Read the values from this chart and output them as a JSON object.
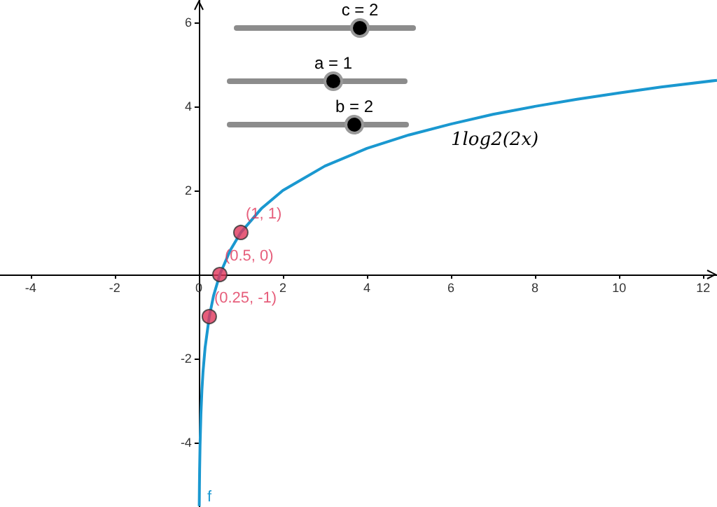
{
  "chart_data": {
    "type": "line",
    "xlim": [
      -4.73,
      12.33
    ],
    "ylim": [
      -5.53,
      6.53
    ],
    "xticks": [
      -4,
      -2,
      0,
      2,
      4,
      6,
      8,
      10,
      12
    ],
    "yticks": [
      -4,
      -2,
      2,
      4,
      6
    ],
    "marker": "none",
    "series": [
      {
        "color": "#1a98d0",
        "x": [
          0.011,
          0.015,
          0.02,
          0.03,
          0.05,
          0.075,
          0.1,
          0.15,
          0.25,
          0.35,
          0.5,
          0.75,
          1,
          1.5,
          2,
          3,
          4,
          5,
          6,
          7,
          8,
          9,
          10,
          11,
          12.33
        ],
        "values": [
          -5.51,
          -5.06,
          -4.64,
          -4.06,
          -3.32,
          -2.74,
          -2.32,
          -1.74,
          -1,
          -0.51,
          0,
          0.58,
          1,
          1.58,
          2,
          2.58,
          3,
          3.32,
          3.58,
          3.81,
          4,
          4.17,
          4.32,
          4.46,
          4.62
        ]
      },
      {
        "type": "scatter",
        "marker": "circle",
        "color": "#e0365a",
        "x": [
          1,
          0.5,
          0.25
        ],
        "values": [
          1,
          0,
          -1
        ],
        "value_labels": [
          "(1, 1)",
          "(0.5, 0)",
          "(0.25, -1)"
        ]
      }
    ],
    "annotations": [
      "1log2(2x)",
      "f",
      "c = 2",
      "a = 1",
      "b = 2"
    ]
  }
}
